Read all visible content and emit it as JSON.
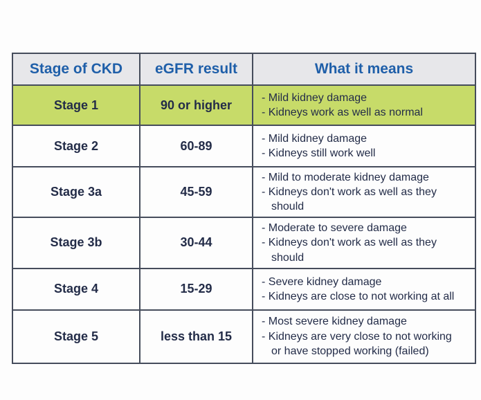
{
  "chart_data": {
    "type": "table",
    "columns": [
      "Stage of CKD",
      "eGFR result",
      "What it means"
    ],
    "rows": [
      {
        "stage": "Stage 1",
        "egfr": "90 or higher",
        "meaning": [
          "- Mild kidney damage",
          "- Kidneys work as well as normal"
        ],
        "highlight": true
      },
      {
        "stage": "Stage 2",
        "egfr": "60-89",
        "meaning": [
          "- Mild kidney damage",
          "- Kidneys still work well"
        ],
        "highlight": false
      },
      {
        "stage": "Stage 3a",
        "egfr": "45-59",
        "meaning": [
          "- Mild to moderate kidney damage",
          "- Kidneys don't work as well as they should"
        ],
        "highlight": false
      },
      {
        "stage": "Stage 3b",
        "egfr": "30-44",
        "meaning": [
          "- Moderate to severe damage",
          "- Kidneys don't work as well as they should"
        ],
        "highlight": false
      },
      {
        "stage": "Stage 4",
        "egfr": "15-29",
        "meaning": [
          "- Severe kidney damage",
          "- Kidneys are close to not working at all"
        ],
        "highlight": false
      },
      {
        "stage": "Stage 5",
        "egfr": "less than 15",
        "meaning": [
          "- Most severe kidney damage",
          "- Kidneys are very close to not working",
          "or have stopped working (failed)"
        ],
        "highlight": false
      }
    ]
  },
  "colors": {
    "header_text": "#1f5fa9",
    "body_text": "#232c48",
    "highlight_row_bg": "#c7db69",
    "header_bg": "#e7e7ea",
    "border": "#454c5b",
    "page_bg": "#fdfdfd"
  }
}
